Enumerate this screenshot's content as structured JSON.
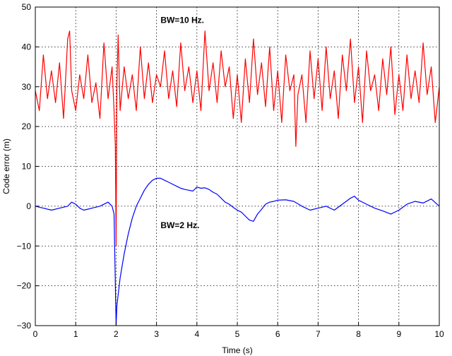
{
  "chart_data": {
    "type": "line",
    "xlabel": "Time (s)",
    "ylabel": "Code error (m)",
    "xlim": [
      0,
      10
    ],
    "ylim": [
      -30,
      50
    ],
    "xticks": [
      0,
      1,
      2,
      3,
      4,
      5,
      6,
      7,
      8,
      9,
      10
    ],
    "yticks": [
      50,
      40,
      30,
      20,
      10,
      0,
      -10,
      -20,
      -30
    ],
    "grid": true,
    "annotations": [
      {
        "text": "BW=10 Hz.",
        "x": 3.1,
        "y": 46
      },
      {
        "text": "BW=2 Hz.",
        "x": 3.1,
        "y": -5.5
      }
    ],
    "series": [
      {
        "name": "BW=10 Hz.",
        "color": "#ff0000",
        "x": [
          0,
          0.1,
          0.2,
          0.3,
          0.4,
          0.5,
          0.6,
          0.7,
          0.8,
          0.85,
          0.9,
          1.0,
          1.1,
          1.2,
          1.3,
          1.4,
          1.5,
          1.6,
          1.7,
          1.8,
          1.9,
          1.95,
          1.98,
          2.0,
          2.02,
          2.05,
          2.1,
          2.2,
          2.3,
          2.4,
          2.5,
          2.6,
          2.7,
          2.8,
          2.9,
          3.0,
          3.1,
          3.2,
          3.3,
          3.4,
          3.5,
          3.6,
          3.7,
          3.8,
          3.9,
          4.0,
          4.1,
          4.2,
          4.3,
          4.4,
          4.5,
          4.6,
          4.7,
          4.8,
          4.9,
          5.0,
          5.1,
          5.2,
          5.3,
          5.4,
          5.5,
          5.6,
          5.7,
          5.8,
          5.9,
          6.0,
          6.1,
          6.2,
          6.3,
          6.4,
          6.45,
          6.5,
          6.6,
          6.7,
          6.8,
          6.9,
          7.0,
          7.1,
          7.2,
          7.3,
          7.4,
          7.5,
          7.6,
          7.7,
          7.8,
          7.9,
          8.0,
          8.1,
          8.2,
          8.3,
          8.4,
          8.5,
          8.6,
          8.7,
          8.8,
          8.9,
          9.0,
          9.1,
          9.2,
          9.3,
          9.4,
          9.5,
          9.6,
          9.7,
          9.8,
          9.9,
          10.0
        ],
        "y": [
          29,
          24,
          38,
          27,
          34,
          26,
          36,
          22,
          42,
          44,
          29,
          24,
          33,
          27,
          38,
          26,
          31,
          22,
          41,
          27,
          35,
          24,
          15,
          -10,
          30,
          43,
          24,
          35,
          27,
          33,
          24,
          40,
          27,
          36,
          26,
          33,
          30,
          39,
          27,
          34,
          25,
          41,
          29,
          35,
          26,
          34,
          24,
          44,
          29,
          36,
          26,
          39,
          30,
          35,
          22,
          33,
          21,
          37,
          26,
          42,
          28,
          36,
          25,
          40,
          24,
          34,
          21,
          38,
          29,
          33,
          15,
          28,
          33,
          21,
          39,
          27,
          37,
          24,
          40,
          27,
          34,
          22,
          38,
          29,
          42,
          26,
          35,
          21,
          39,
          29,
          33,
          24,
          37,
          28,
          40,
          23,
          33,
          24,
          38,
          27,
          34,
          26,
          41,
          28,
          35,
          21,
          30
        ]
      },
      {
        "name": "BW=2 Hz.",
        "color": "#0000ff",
        "x": [
          0,
          0.2,
          0.4,
          0.6,
          0.8,
          0.9,
          1.0,
          1.1,
          1.2,
          1.4,
          1.6,
          1.7,
          1.8,
          1.9,
          1.95,
          2.0,
          2.02,
          2.1,
          2.2,
          2.3,
          2.4,
          2.5,
          2.6,
          2.7,
          2.8,
          2.9,
          3.0,
          3.1,
          3.2,
          3.3,
          3.4,
          3.5,
          3.6,
          3.7,
          3.8,
          3.9,
          4.0,
          4.1,
          4.2,
          4.3,
          4.4,
          4.5,
          4.6,
          4.7,
          4.8,
          4.9,
          5.0,
          5.1,
          5.2,
          5.3,
          5.4,
          5.5,
          5.6,
          5.7,
          5.8,
          5.9,
          6.0,
          6.2,
          6.4,
          6.6,
          6.8,
          7.0,
          7.2,
          7.4,
          7.6,
          7.8,
          7.9,
          8.0,
          8.2,
          8.4,
          8.6,
          8.8,
          9.0,
          9.2,
          9.4,
          9.6,
          9.8,
          10.0
        ],
        "y": [
          0,
          -0.5,
          -1,
          -0.5,
          0,
          1,
          0.5,
          -0.5,
          -1,
          -0.5,
          0,
          0.5,
          1,
          0,
          -2,
          -30,
          -25,
          -18,
          -12,
          -7,
          -3,
          0,
          2,
          4,
          5.5,
          6.5,
          7,
          7,
          6.5,
          6,
          5.5,
          5,
          4.5,
          4.2,
          4,
          3.8,
          4.8,
          4.5,
          4.6,
          4.2,
          3.5,
          3,
          2,
          1,
          0.5,
          -0.3,
          -1,
          -1.5,
          -2.5,
          -3.5,
          -3.8,
          -2,
          -0.8,
          0.5,
          1,
          1.2,
          1.5,
          1.6,
          1.2,
          0,
          -1,
          -0.5,
          0,
          -1,
          0.5,
          2,
          2.5,
          1.5,
          0.5,
          -0.5,
          -1.2,
          -2,
          -1,
          0.5,
          1.2,
          0.8,
          1.8,
          0
        ]
      }
    ]
  }
}
